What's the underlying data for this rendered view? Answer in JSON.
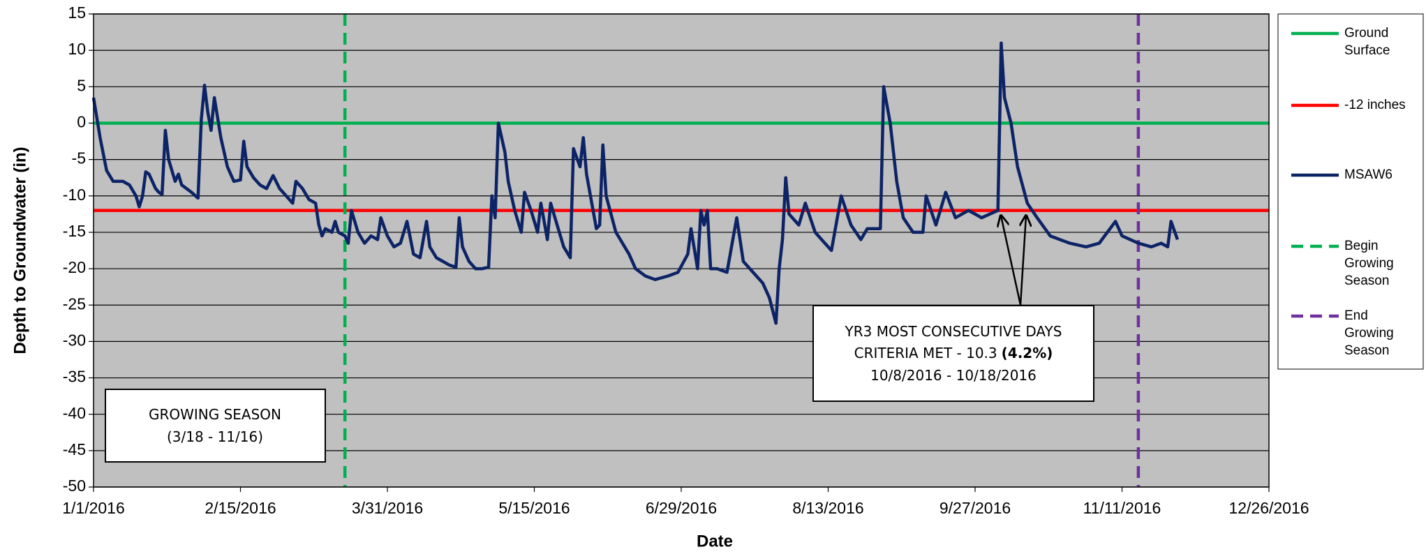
{
  "chart_data": {
    "type": "line",
    "x_label": "Date",
    "y_label": "Depth to Groundwater (in)",
    "xlim": [
      "1/1/2016",
      "12/26/2016"
    ],
    "xticks": [
      "1/1/2016",
      "2/15/2016",
      "3/31/2016",
      "5/15/2016",
      "6/29/2016",
      "8/13/2016",
      "9/27/2016",
      "11/11/2016",
      "12/26/2016"
    ],
    "ylim": [
      -50,
      15
    ],
    "yticks": [
      15,
      10,
      5,
      0,
      -5,
      -10,
      -15,
      -20,
      -25,
      -30,
      -35,
      -40,
      -45,
      -50
    ],
    "grid": true,
    "legend": "right",
    "series": [
      {
        "name": "Ground Surface",
        "color": "#00b050",
        "y": 0
      },
      {
        "name": "-12 inches",
        "color": "#ff0000",
        "y": -12
      },
      {
        "name": "MSAW6",
        "color": "#0c2366",
        "x": [
          "1/1/2016",
          "1/3/2016",
          "1/5/2016",
          "1/7/2016",
          "1/10/2016",
          "1/12/2016",
          "1/14/2016",
          "1/15/2016",
          "1/16/2016",
          "1/17/2016",
          "1/18/2016",
          "1/20/2016",
          "1/21/2016",
          "1/22/2016",
          "1/23/2016",
          "1/24/2016",
          "1/26/2016",
          "1/27/2016",
          "1/28/2016",
          "1/31/2016",
          "2/2/2016",
          "2/3/2016",
          "2/4/2016",
          "2/5/2016",
          "2/6/2016",
          "2/7/2016",
          "2/9/2016",
          "2/11/2016",
          "2/13/2016",
          "2/15/2016",
          "2/16/2016",
          "2/17/2016",
          "2/19/2016",
          "2/21/2016",
          "2/23/2016",
          "2/25/2016",
          "2/27/2016",
          "2/29/2016",
          "3/2/2016",
          "3/3/2016",
          "3/5/2016",
          "3/7/2016",
          "3/9/2016",
          "3/10/2016",
          "3/11/2016",
          "3/12/2016",
          "3/14/2016",
          "3/15/2016",
          "3/16/2016",
          "3/18/2016",
          "3/19/2016",
          "3/20/2016",
          "3/22/2016",
          "3/24/2016",
          "3/26/2016",
          "3/28/2016",
          "3/29/2016",
          "3/31/2016",
          "4/2/2016",
          "4/4/2016",
          "4/6/2016",
          "4/8/2016",
          "4/10/2016",
          "4/12/2016",
          "4/13/2016",
          "4/15/2016",
          "4/17/2016",
          "4/19/2016",
          "4/21/2016",
          "4/22/2016",
          "4/23/2016",
          "4/25/2016",
          "4/27/2016",
          "4/29/2016",
          "5/1/2016",
          "5/2/2016",
          "5/3/2016",
          "5/4/2016",
          "5/6/2016",
          "5/7/2016",
          "5/9/2016",
          "5/11/2016",
          "5/12/2016",
          "5/14/2016",
          "5/16/2016",
          "5/17/2016",
          "5/19/2016",
          "5/20/2016",
          "5/22/2016",
          "5/24/2016",
          "5/26/2016",
          "5/27/2016",
          "5/29/2016",
          "5/30/2016",
          "5/31/2016",
          "6/3/2016",
          "6/4/2016",
          "6/5/2016",
          "6/6/2016",
          "6/9/2016",
          "6/13/2016",
          "6/15/2016",
          "6/18/2016",
          "6/21/2016",
          "6/25/2016",
          "6/28/2016",
          "7/1/2016",
          "7/2/2016",
          "7/4/2016",
          "7/5/2016",
          "7/6/2016",
          "7/7/2016",
          "7/8/2016",
          "7/10/2016",
          "7/13/2016",
          "7/16/2016",
          "7/18/2016",
          "7/21/2016",
          "7/24/2016",
          "7/26/2016",
          "7/28/2016",
          "7/29/2016",
          "7/30/2016",
          "7/31/2016",
          "8/1/2016",
          "8/4/2016",
          "8/6/2016",
          "8/9/2016",
          "8/11/2016",
          "8/14/2016",
          "8/17/2016",
          "8/20/2016",
          "8/23/2016",
          "8/25/2016",
          "8/29/2016",
          "8/30/2016",
          "9/1/2016",
          "9/3/2016",
          "9/5/2016",
          "9/8/2016",
          "9/11/2016",
          "9/12/2016",
          "9/15/2016",
          "9/18/2016",
          "9/21/2016",
          "9/25/2016",
          "9/29/2016",
          "10/4/2016",
          "10/5/2016",
          "10/6/2016",
          "10/8/2016",
          "10/10/2016",
          "10/13/2016",
          "10/16/2016",
          "10/20/2016",
          "10/26/2016",
          "10/31/2016",
          "11/4/2016",
          "11/9/2016",
          "11/11/2016",
          "11/16/2016",
          "11/20/2016",
          "11/23/2016",
          "11/25/2016",
          "11/26/2016",
          "11/28/2016"
        ],
        "values": [
          3.5,
          -2,
          -6.5,
          -8,
          -8,
          -8.5,
          -10,
          -11.5,
          -10,
          -6.7,
          -7,
          -9,
          -9.5,
          -9.8,
          -1,
          -5,
          -8,
          -7,
          -8.5,
          -9.5,
          -10.3,
          0.5,
          5.2,
          1.5,
          -1,
          3.5,
          -2,
          -6,
          -8,
          -7.8,
          -2.5,
          -6,
          -7.5,
          -8.5,
          -9,
          -7.2,
          -9,
          -10,
          -11,
          -8,
          -9,
          -10.5,
          -11,
          -14,
          -15.5,
          -14.5,
          -15,
          -13.5,
          -15,
          -15.5,
          -16.5,
          -12,
          -15,
          -16.5,
          -15.5,
          -16,
          -13,
          -15.5,
          -17,
          -16.5,
          -13.5,
          -18,
          -18.5,
          -13.5,
          -17,
          -18.5,
          -19,
          -19.5,
          -19.8,
          -13,
          -17,
          -19,
          -20,
          -20,
          -19.8,
          -10,
          -13,
          0,
          -4,
          -8,
          -12,
          -15,
          -9.5,
          -12,
          -15,
          -11,
          -16,
          -11,
          -14,
          -17,
          -18.5,
          -3.5,
          -6,
          -2,
          -7,
          -14.5,
          -14,
          -3,
          -10,
          -15,
          -18,
          -20,
          -21,
          -21.5,
          -21,
          -20.5,
          -18,
          -14.5,
          -20,
          -12,
          -14,
          -12,
          -20,
          -20,
          -20.5,
          -13,
          -19,
          -20.5,
          -22,
          -24,
          -27.5,
          -20,
          -16,
          -7.5,
          -12.5,
          -14,
          -11,
          -15,
          -16,
          -17.5,
          -10,
          -14,
          -16,
          -14.5,
          -14.5,
          5,
          0,
          -8,
          -13,
          -15,
          -15,
          -10,
          -14,
          -9.5,
          -13,
          -12,
          -13,
          -12,
          11,
          3.5,
          0,
          -6,
          -11,
          -13,
          -15.5,
          -16.5,
          -17,
          -16.5,
          -13.5,
          -15.5,
          -16.5,
          -17,
          -16.5,
          -17,
          -13.5,
          -16
        ]
      },
      {
        "name": "Begin Growing Season",
        "color": "#00b050",
        "dashed": true,
        "x": "3/18/2016"
      },
      {
        "name": "End Growing Season",
        "color": "#7030a0",
        "dashed": true,
        "x": "11/16/2016"
      }
    ],
    "annotations": [
      {
        "lines": [
          [
            {
              "text": "GROWING SEASON"
            }
          ],
          [
            {
              "text": "(3/18 - 11/16)"
            }
          ]
        ]
      },
      {
        "lines": [
          [
            {
              "text": "YR3 MOST CONSECUTIVE DAYS"
            }
          ],
          [
            {
              "text": "CRITERIA MET - 10.3"
            },
            {
              "text": "(4.2%)",
              "bold": true
            }
          ],
          [
            {
              "text": "10/8/2016 - 10/18/2016"
            }
          ]
        ]
      }
    ]
  }
}
